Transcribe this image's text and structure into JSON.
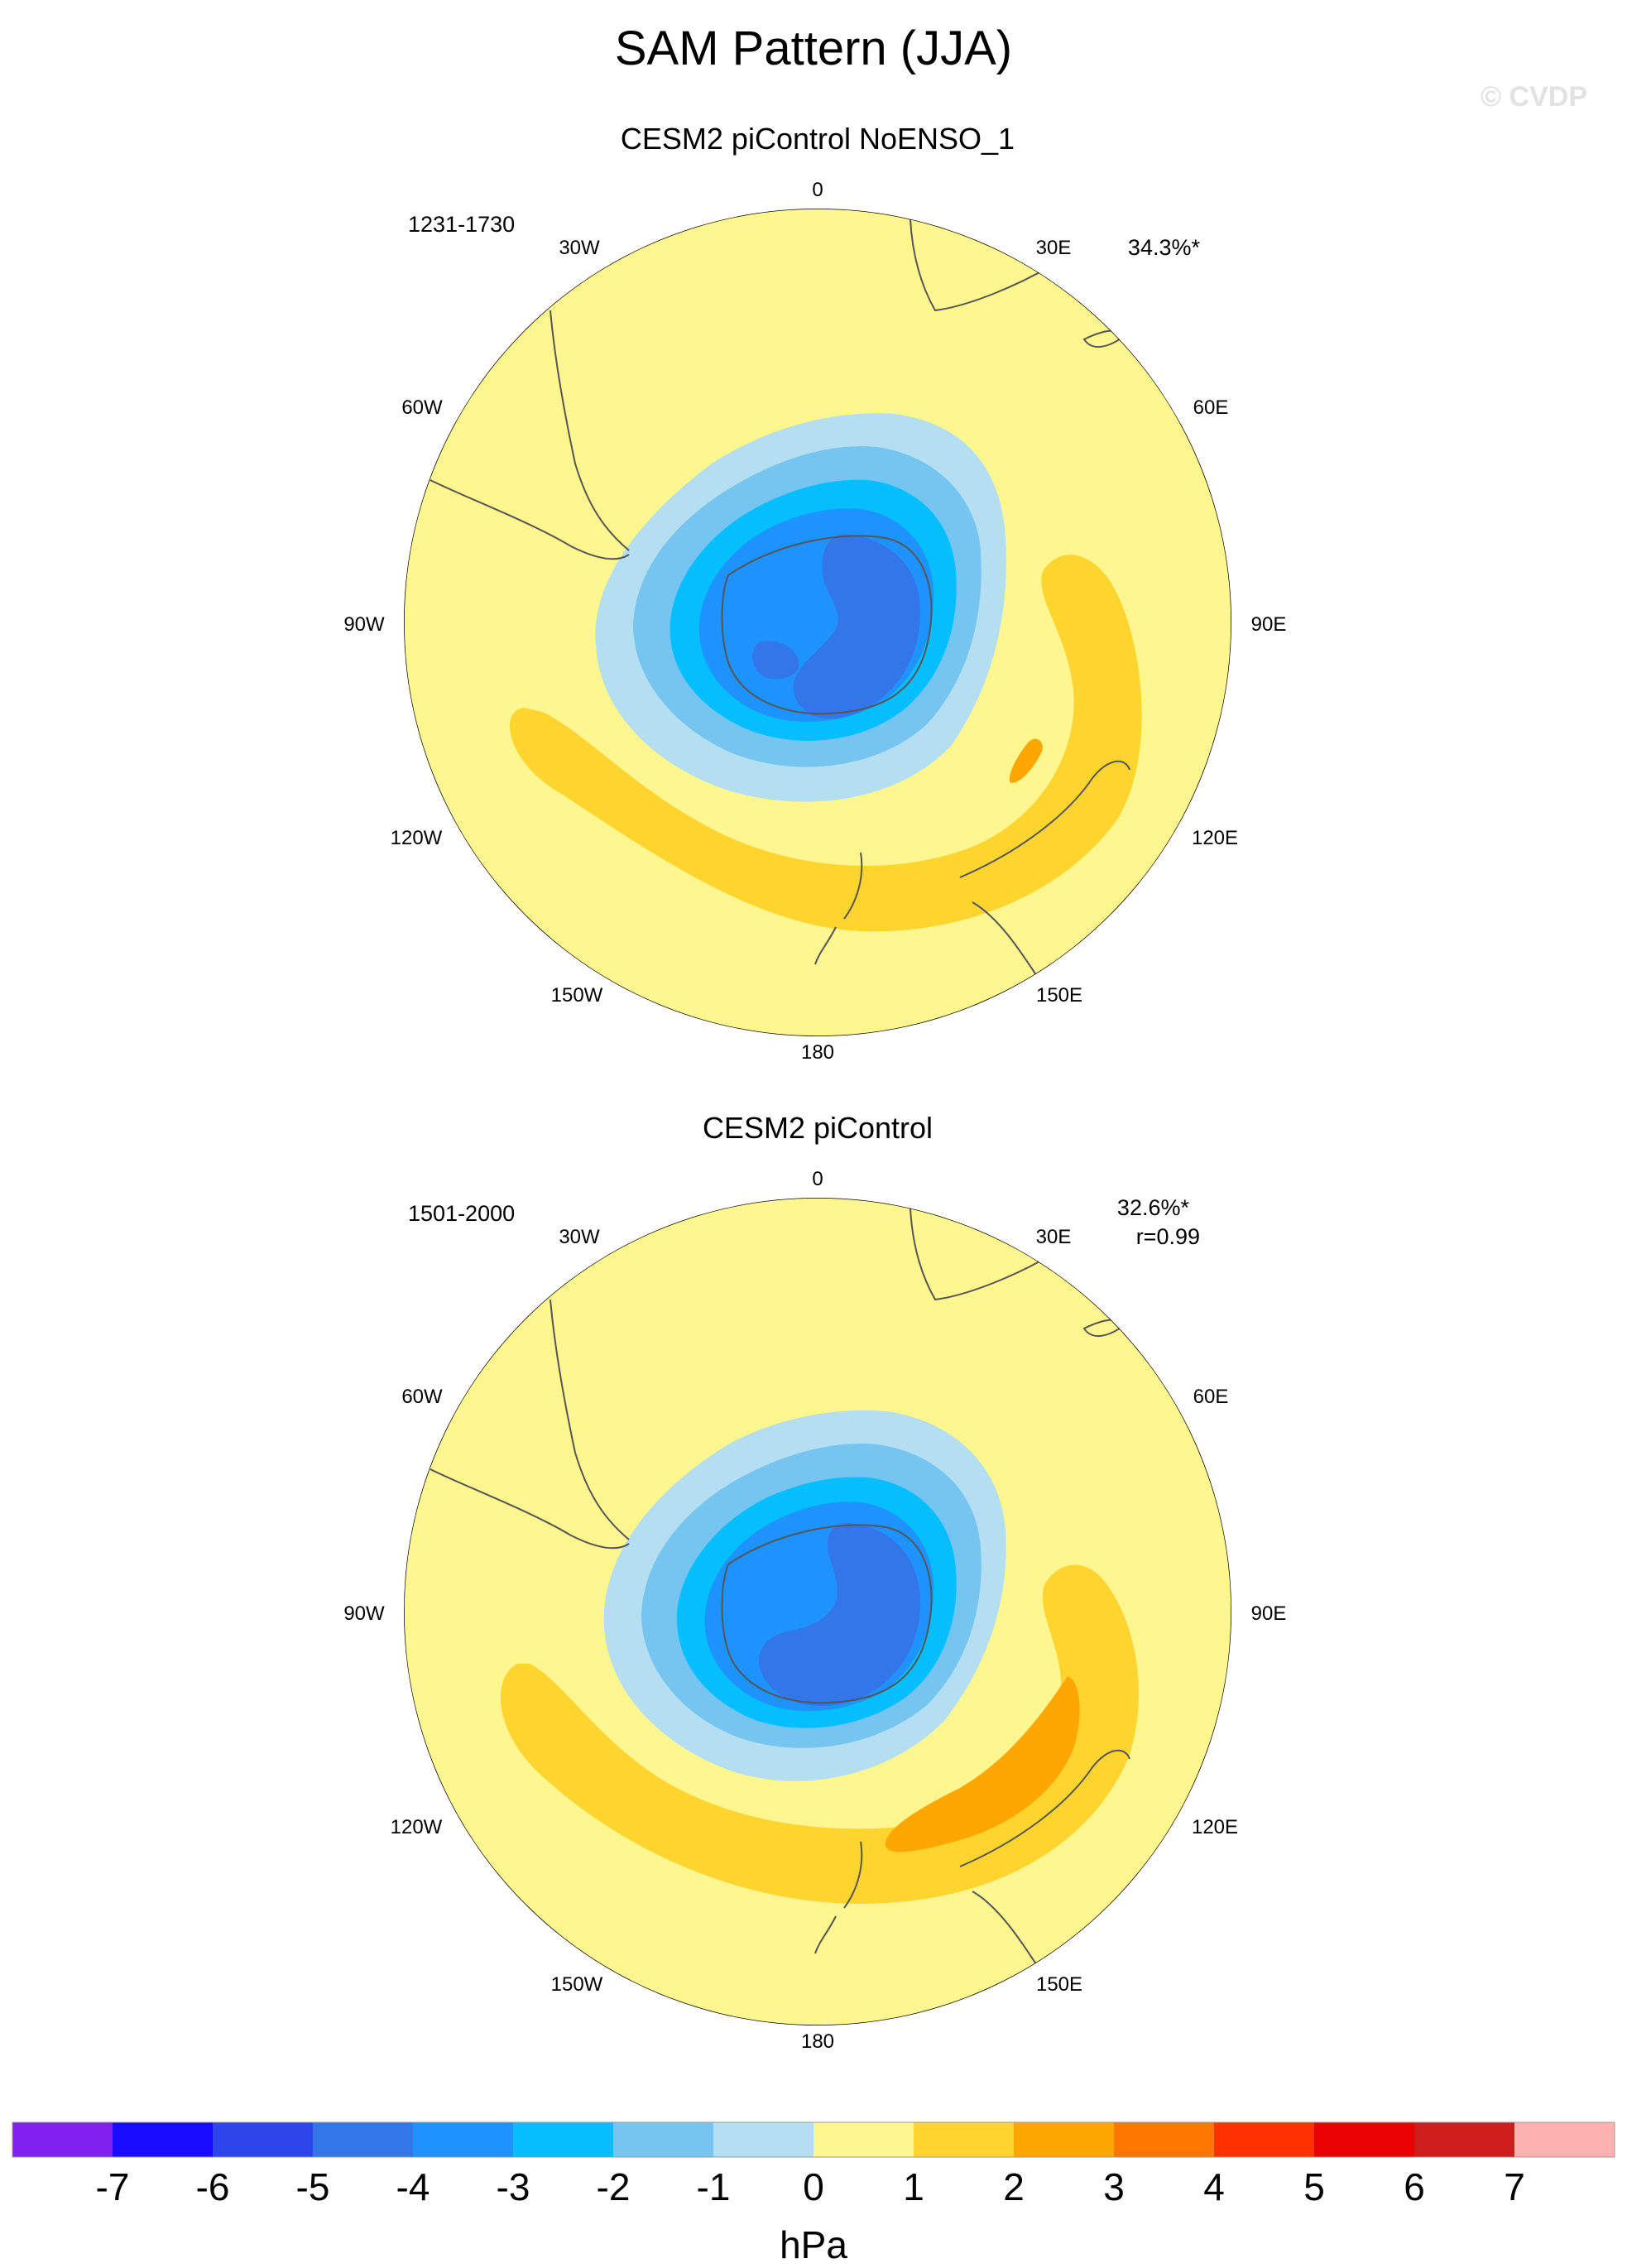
{
  "figure": {
    "title": "SAM Pattern (JJA)",
    "watermark": "© CVDP"
  },
  "panels": [
    {
      "id": "top",
      "subtitle": "CESM2 piControl NoENSO_1",
      "years": "1231-1730",
      "variance": "34.3%*",
      "correlation": "",
      "lon_labels": [
        "0",
        "30E",
        "60E",
        "90E",
        "120E",
        "150E",
        "180",
        "150W",
        "120W",
        "90W",
        "60W",
        "30W"
      ]
    },
    {
      "id": "bottom",
      "subtitle": "CESM2 piControl",
      "years": "1501-2000",
      "variance": "32.6%*",
      "correlation": "r=0.99",
      "lon_labels": [
        "0",
        "30E",
        "60E",
        "90E",
        "120E",
        "150E",
        "180",
        "150W",
        "120W",
        "90W",
        "60W",
        "30W"
      ]
    }
  ],
  "colorbar": {
    "unit": "hPa",
    "tick_labels": [
      "-7",
      "-6",
      "-5",
      "-4",
      "-3",
      "-2",
      "-1",
      "0",
      "1",
      "2",
      "3",
      "4",
      "5",
      "6",
      "7"
    ],
    "colors": [
      "#8021f0",
      "#1a0cff",
      "#2c46eb",
      "#3276ea",
      "#1e93fe",
      "#04befe",
      "#76c5f1",
      "#b4dff3",
      "#fef68f",
      "#fed42e",
      "#fea601",
      "#fd7801",
      "#fe3201",
      "#e80201",
      "#cf1c1c",
      "#feb1b1"
    ]
  },
  "chart_data": {
    "type": "polar-contour-map",
    "projection": "south polar stereographic",
    "variable": "SAM sea-level pressure pattern (JJA)",
    "units": "hPa",
    "contour_levels": [
      -7,
      -6,
      -5,
      -4,
      -3,
      -2,
      -1,
      0,
      1,
      2,
      3,
      4,
      5,
      6,
      7
    ],
    "panels": [
      {
        "name": "CESM2 piControl NoENSO_1",
        "years": "1231-1730",
        "variance_pct": 34.3,
        "min_hPa": -4,
        "max_hPa": 3
      },
      {
        "name": "CESM2 piControl",
        "years": "1501-2000",
        "variance_pct": 32.6,
        "pattern_correlation": 0.99,
        "min_hPa": -4,
        "max_hPa": 3
      }
    ]
  }
}
